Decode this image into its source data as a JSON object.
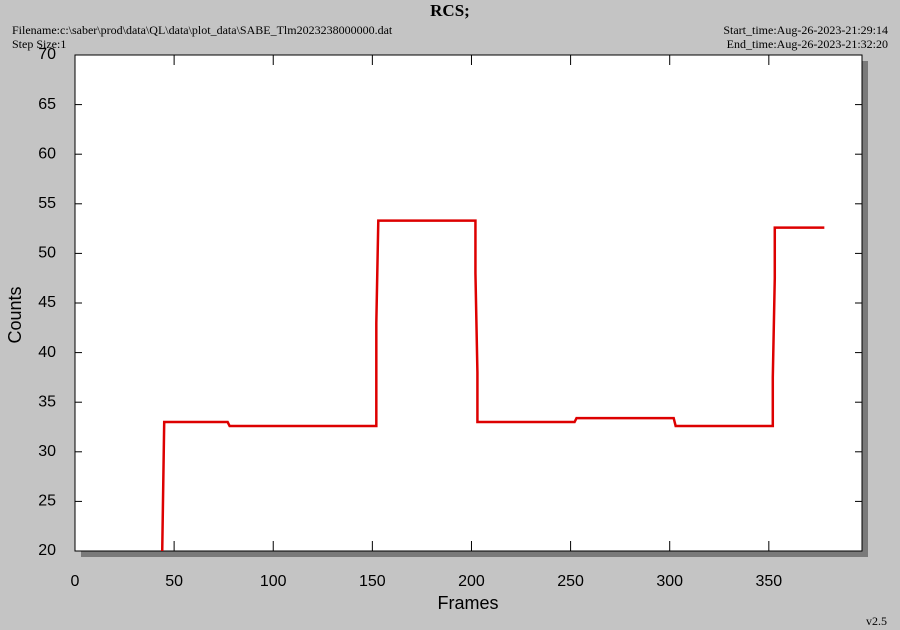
{
  "chart_data": {
    "type": "line",
    "title": "RCS;",
    "filename": "Filename:c:\\saber\\prod\\data\\QL\\data\\plot_data\\SABE_Tlm2023238000000.dat",
    "step_size": "Step Size:1",
    "start_time": "Start_time:Aug-26-2023-21:29:14",
    "end_time": "End_time:Aug-26-2023-21:32:20",
    "version": "v2.5",
    "x_label": "Frames",
    "y_label": "Counts",
    "x": [
      44,
      45,
      77,
      78,
      152,
      152,
      153,
      202,
      202,
      203,
      203,
      252,
      253,
      302,
      303,
      352,
      352,
      353,
      353,
      378
    ],
    "series": [
      {
        "color": "#dd0000",
        "values": [
          20,
          33,
          33,
          32.6,
          32.6,
          43,
          53.3,
          53.3,
          48,
          38,
          33,
          33,
          33.4,
          33.4,
          32.6,
          32.6,
          37.5,
          47.5,
          52.6,
          52.6
        ]
      }
    ],
    "xlim": [
      0,
      397
    ],
    "ylim": [
      20,
      70
    ],
    "xticks": [
      0,
      50,
      100,
      150,
      200,
      250,
      300,
      350
    ],
    "yticks": [
      20,
      25,
      30,
      35,
      40,
      45,
      50,
      55,
      60,
      65,
      70
    ],
    "grid": false
  }
}
